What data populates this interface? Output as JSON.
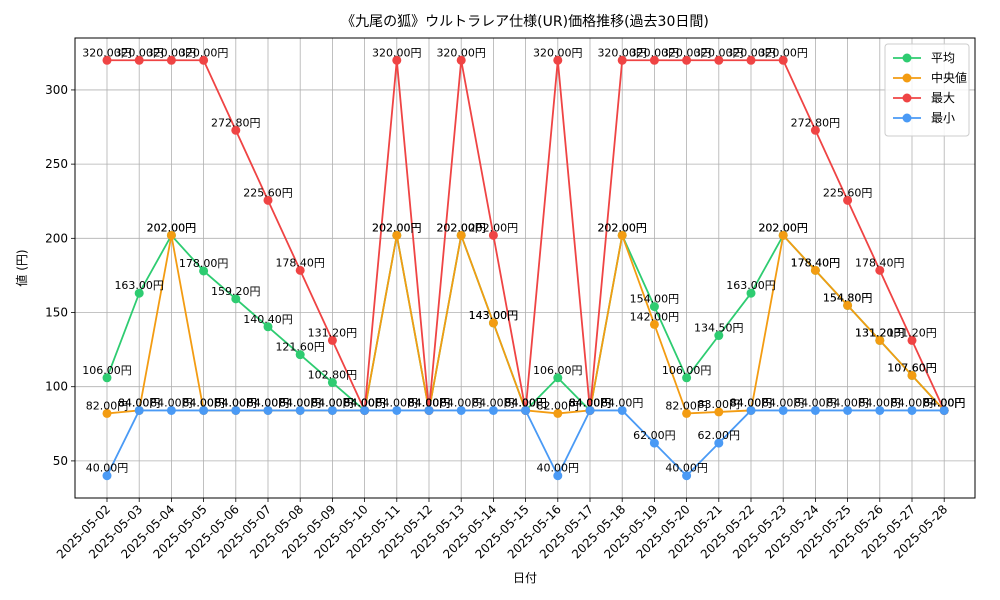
{
  "chart_data": {
    "type": "line",
    "title": "《九尾の狐》ウルトラレア仕様(UR)価格推移(過去30日間)",
    "xlabel": "日付",
    "ylabel": "値 (円)",
    "ylim": [
      25,
      335
    ],
    "yticks": [
      50,
      100,
      150,
      200,
      250,
      300
    ],
    "grid": true,
    "legend_position": "top-right",
    "label_suffix": "円",
    "categories": [
      "2025-05-02",
      "2025-05-03",
      "2025-05-04",
      "2025-05-05",
      "2025-05-06",
      "2025-05-07",
      "2025-05-08",
      "2025-05-09",
      "2025-05-10",
      "2025-05-11",
      "2025-05-12",
      "2025-05-13",
      "2025-05-14",
      "2025-05-15",
      "2025-05-16",
      "2025-05-17",
      "2025-05-18",
      "2025-05-19",
      "2025-05-20",
      "2025-05-21",
      "2025-05-22",
      "2025-05-23",
      "2025-05-24",
      "2025-05-25",
      "2025-05-26",
      "2025-05-27",
      "2025-05-28"
    ],
    "series": [
      {
        "name": "平均",
        "color": "#2ecc71",
        "values": [
          106,
          163,
          202,
          178,
          159.2,
          140.4,
          121.6,
          102.8,
          84,
          202,
          84,
          202,
          143,
          84,
          106,
          84,
          202,
          154,
          106,
          134.5,
          163,
          202,
          178.4,
          154.8,
          131.2,
          107.6,
          84
        ]
      },
      {
        "name": "中央値",
        "color": "#f39c12",
        "values": [
          82,
          84,
          202,
          84,
          84,
          84,
          84,
          84,
          84,
          202,
          84,
          202,
          143,
          84,
          82,
          84,
          202,
          142,
          82,
          83,
          84,
          202,
          178.4,
          154.8,
          131.2,
          107.6,
          84
        ]
      },
      {
        "name": "最大",
        "color": "#ef4444",
        "values": [
          320,
          320,
          320,
          320,
          272.8,
          225.6,
          178.4,
          131.2,
          84,
          320,
          84,
          320,
          202,
          84,
          320,
          84,
          320,
          320,
          320,
          320,
          320,
          320,
          272.8,
          225.6,
          178.4,
          131.2,
          84
        ]
      },
      {
        "name": "最小",
        "color": "#4a9af5",
        "values": [
          40,
          84,
          84,
          84,
          84,
          84,
          84,
          84,
          84,
          84,
          84,
          84,
          84,
          84,
          40,
          84,
          84,
          62,
          40,
          62,
          84,
          84,
          84,
          84,
          84,
          84,
          84
        ]
      }
    ]
  }
}
